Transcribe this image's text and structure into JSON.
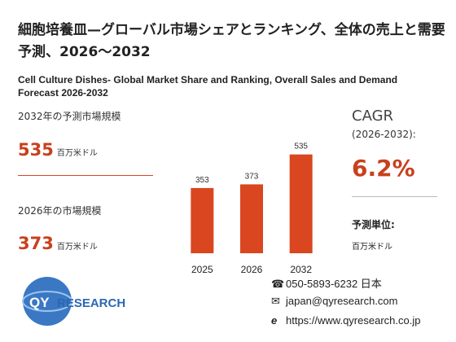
{
  "header": {
    "title": "細胞培養皿—グローバル市場シェアとランキング、全体の売上と需要予測、2026～2032",
    "subtitle": "Cell Culture Dishes- Global Market Share and Ranking, Overall Sales and Demand Forecast 2026-2032"
  },
  "stats": [
    {
      "label": "2032年の予測市場規模",
      "value": "535",
      "unit": "百万米ドル"
    },
    {
      "label": "2026年の市場規模",
      "value": "373",
      "unit": "百万米ドル"
    }
  ],
  "cagr": {
    "label": "CAGR",
    "period": "(2026-2032):",
    "value": "6.2%"
  },
  "forecast_unit": {
    "label": "予測単位:",
    "value": "百万米ドル"
  },
  "logo": [
    "QY",
    "RESEARCH"
  ],
  "contact": {
    "phone": "050-5893-6232 日本",
    "email": "japan@qyresearch.com",
    "url": "https://www.qyresearch.co.jp"
  },
  "chart_data": {
    "type": "bar",
    "categories": [
      "2025",
      "2026",
      "2032"
    ],
    "values": [
      353,
      373,
      535
    ],
    "color": "#d9461f",
    "ylim": [
      0,
      560
    ]
  }
}
